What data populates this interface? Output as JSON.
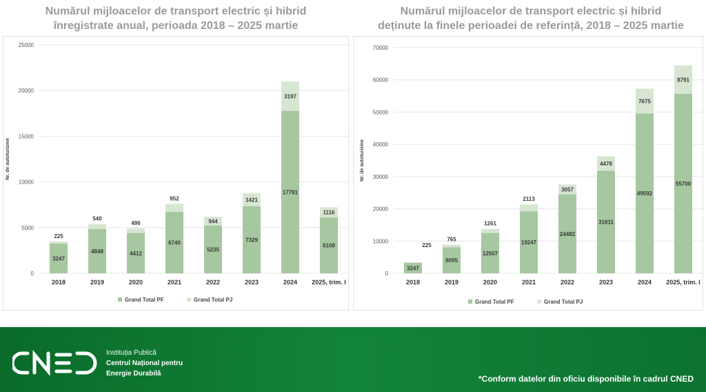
{
  "colors": {
    "pf": "#a6c7a0",
    "pj": "#d6e6d2",
    "grid": "#e6e6e6",
    "footer": "#0e7a34"
  },
  "chart_data": [
    {
      "type": "bar",
      "stacked": true,
      "title": "Numărul mijloacelor de transport electric și hibrid înregistrate anual,  perioada 2018 – 2025 martie",
      "title_lines": [
        "Numărul mijloacelor de transport electric și hibrid",
        "înregistrate anual,  perioada 2018 – 2025 martie"
      ],
      "ylabel": "Nr. de autoturizme",
      "xlabel": "",
      "ylim": [
        0,
        25000
      ],
      "yticks": [
        "0",
        "5000",
        "10000",
        "15000",
        "20000",
        "25000"
      ],
      "grid": true,
      "legend_position": "bottom",
      "categories": [
        "2018",
        "2019",
        "2020",
        "2021",
        "2022",
        "2023",
        "2024",
        "2025, trim. I"
      ],
      "series": [
        {
          "name": "Grand Total PF",
          "values": [
            3247,
            4848,
            4412,
            6740,
            5235,
            7329,
            17781,
            6108
          ]
        },
        {
          "name": "Grand Total PJ",
          "values": [
            225,
            540,
            496,
            852,
            944,
            1421,
            3197,
            1116
          ]
        }
      ]
    },
    {
      "type": "bar",
      "stacked": true,
      "title": "Numărul mijloacelor de transport electric și hibrid deținute la finele perioadei de referință, 2018 – 2025 martie",
      "title_lines": [
        "Numărul mijloacelor de transport electric și hibrid",
        "deținute la finele perioadei de referință, 2018 – 2025 martie"
      ],
      "ylabel": "Nr. de autoturizme",
      "xlabel": "",
      "ylim": [
        0,
        70000
      ],
      "yticks": [
        "0",
        "10000",
        "20000",
        "30000",
        "40000",
        "50000",
        "60000",
        "70000"
      ],
      "grid": true,
      "legend_position": "bottom",
      "categories": [
        "2018",
        "2019",
        "2020",
        "2021",
        "2022",
        "2023",
        "2024",
        "2025, trim. I"
      ],
      "series": [
        {
          "name": "Grand Total PF",
          "values": [
            3247,
            8095,
            12507,
            19247,
            24482,
            31811,
            49592,
            55700
          ]
        },
        {
          "name": "Grand Total PJ",
          "values": [
            225,
            765,
            1261,
            2113,
            3057,
            4478,
            7675,
            8791
          ]
        }
      ]
    }
  ],
  "footer": {
    "logo_text": "CNED",
    "institution_line1": "Instituția Publică",
    "institution_line2": "Centrul Național pentru",
    "institution_line3": "Energie Durabilă",
    "note": "*Conform datelor din oficiu disponibile în cadrul CNED"
  }
}
